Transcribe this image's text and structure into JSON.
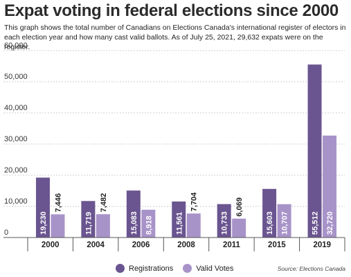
{
  "chart_data": {
    "type": "bar",
    "title": "Expat voting in federal elections since 2000",
    "subtitle": "This graph shows the total number of Canadians on Elections Canada's international register of electors in each election year and how many cast valid ballots. As of July 25, 2021, 29,632 expats were on the register.",
    "categories": [
      "2000",
      "2004",
      "2006",
      "2008",
      "2011",
      "2015",
      "2019"
    ],
    "series": [
      {
        "name": "Registrations",
        "color": "#6a5590",
        "values": [
          19230,
          11719,
          15083,
          11561,
          10733,
          15603,
          55512
        ]
      },
      {
        "name": "Valid Votes",
        "color": "#a893c9",
        "values": [
          7446,
          7482,
          8918,
          7704,
          6069,
          10707,
          32720
        ]
      }
    ],
    "data_labels": [
      [
        "19,230",
        "11,719",
        "15,083",
        "11,561",
        "10,733",
        "15,603",
        "55,512"
      ],
      [
        "7,446",
        "7,482",
        "8,918",
        "7,704",
        "6,069",
        "10,707",
        "32,720"
      ]
    ],
    "ylim": [
      0,
      60000
    ],
    "yticks": [
      0,
      10000,
      20000,
      30000,
      40000,
      50000,
      60000
    ],
    "ytick_labels": [
      "0",
      "10,000",
      "20,000",
      "30,000",
      "40,000",
      "50,000",
      "60,000"
    ],
    "grid": true,
    "legend_position": "bottom-center",
    "source": "Source: Elections Canada"
  }
}
